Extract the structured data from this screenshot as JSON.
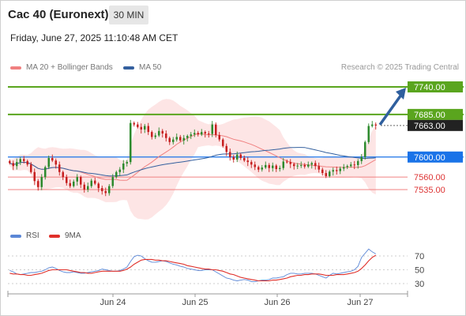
{
  "header": {
    "title": "Cac 40 (Euronext)",
    "timeframe": "30 MIN",
    "datetime": "Friday, June 27, 2025 11:10:48 AM CET"
  },
  "legend": {
    "ma20_label": "MA 20 + Bollinger Bands",
    "ma50_label": "MA 50",
    "credit": "Research © 2025 Trading Central"
  },
  "rsi_legend": {
    "rsi_label": "RSI",
    "ma9_label": "9MA"
  },
  "colors": {
    "ma20": "#f08080",
    "bollinger_fill": "#fde0e0",
    "ma50": "#34609e",
    "candle_up": "#2d8a2d",
    "candle_down": "#c62020",
    "resistance": "#5aa51e",
    "pivot": "#1a73e8",
    "support": "#f08080",
    "arrow": "#2f5f9e",
    "rsi": "#5b87d6",
    "rsi_ma": "#e0302a"
  },
  "chart_data": [
    {
      "type": "candlestick",
      "title": "",
      "x_ticks": [
        "Jun 24",
        "Jun 25",
        "Jun 26",
        "Jun 27"
      ],
      "ylim": [
        7475,
        7765
      ],
      "current_price": 7663.0,
      "levels": [
        {
          "label": "7740.00",
          "value": 7740,
          "kind": "resistance"
        },
        {
          "label": "7685.00",
          "value": 7685,
          "kind": "resistance"
        },
        {
          "label": "7663.00",
          "value": 7663,
          "kind": "current"
        },
        {
          "label": "7600.00",
          "value": 7600,
          "kind": "pivot"
        },
        {
          "label": "7560.00",
          "value": 7560,
          "kind": "support"
        },
        {
          "label": "7535.00",
          "value": 7535,
          "kind": "support"
        }
      ],
      "target": {
        "from": 7663,
        "to": 7740
      },
      "close": [
        7588,
        7582,
        7590,
        7596,
        7592,
        7585,
        7570,
        7552,
        7540,
        7560,
        7580,
        7598,
        7593,
        7585,
        7570,
        7560,
        7548,
        7542,
        7551,
        7560,
        7545,
        7535,
        7542,
        7553,
        7547,
        7538,
        7532,
        7528,
        7542,
        7560,
        7570,
        7575,
        7587,
        7590,
        7668,
        7665,
        7660,
        7655,
        7662,
        7650,
        7640,
        7643,
        7652,
        7647,
        7638,
        7630,
        7635,
        7640,
        7633,
        7638,
        7642,
        7645,
        7648,
        7645,
        7650,
        7647,
        7646,
        7665,
        7644,
        7635,
        7622,
        7610,
        7600,
        7595,
        7605,
        7598,
        7593,
        7590,
        7585,
        7580,
        7575,
        7579,
        7584,
        7578,
        7583,
        7576,
        7578,
        7591,
        7590,
        7586,
        7582,
        7583,
        7584,
        7581,
        7585,
        7588,
        7582,
        7575,
        7568,
        7562,
        7571,
        7574,
        7572,
        7577,
        7580,
        7582,
        7585,
        7584,
        7592,
        7600,
        7630,
        7662,
        7665,
        7663
      ]
    },
    {
      "type": "line",
      "title": "",
      "ylim": [
        20,
        85
      ],
      "y_ticks": [
        30,
        50,
        70
      ],
      "series": [
        {
          "name": "RSI",
          "values": [
            49,
            47,
            44,
            43,
            44,
            45,
            46,
            46,
            47,
            48,
            50,
            53,
            54,
            52,
            49,
            47,
            46,
            46,
            47,
            46,
            45,
            45,
            46,
            47,
            48,
            49,
            51,
            50,
            49,
            48,
            48,
            49,
            51,
            54,
            62,
            69,
            71,
            70,
            66,
            63,
            61,
            61,
            62,
            63,
            62,
            60,
            58,
            57,
            55,
            54,
            52,
            51,
            50,
            49,
            49,
            50,
            50,
            50,
            47,
            44,
            41,
            38,
            37,
            35,
            34,
            35,
            36,
            35,
            33,
            33,
            34,
            35,
            35,
            36,
            38,
            38,
            39,
            40,
            43,
            45,
            45,
            44,
            44,
            45,
            45,
            45,
            44,
            42,
            40,
            38,
            42,
            45,
            44,
            45,
            46,
            47,
            48,
            50,
            55,
            68,
            74,
            80,
            76,
            73
          ]
        },
        {
          "name": "9MA",
          "values": [
            45,
            44,
            44,
            43,
            43,
            42,
            42,
            43,
            44,
            45,
            47,
            49,
            50,
            50,
            50,
            50,
            50,
            49,
            48,
            47,
            46,
            46,
            45,
            45,
            46,
            47,
            48,
            48,
            48,
            48,
            48,
            48,
            49,
            51,
            54,
            58,
            61,
            64,
            65,
            65,
            65,
            64,
            64,
            63,
            63,
            62,
            61,
            60,
            59,
            58,
            56,
            55,
            54,
            53,
            52,
            51,
            51,
            50,
            50,
            49,
            48,
            46,
            44,
            43,
            41,
            39,
            38,
            37,
            36,
            35,
            34,
            34,
            34,
            34,
            35,
            35,
            36,
            37,
            38,
            40,
            41,
            42,
            42,
            43,
            43,
            44,
            44,
            44,
            43,
            42,
            42,
            42,
            43,
            43,
            43,
            44,
            45,
            46,
            48,
            52,
            57,
            63,
            68,
            71
          ]
        }
      ]
    }
  ]
}
